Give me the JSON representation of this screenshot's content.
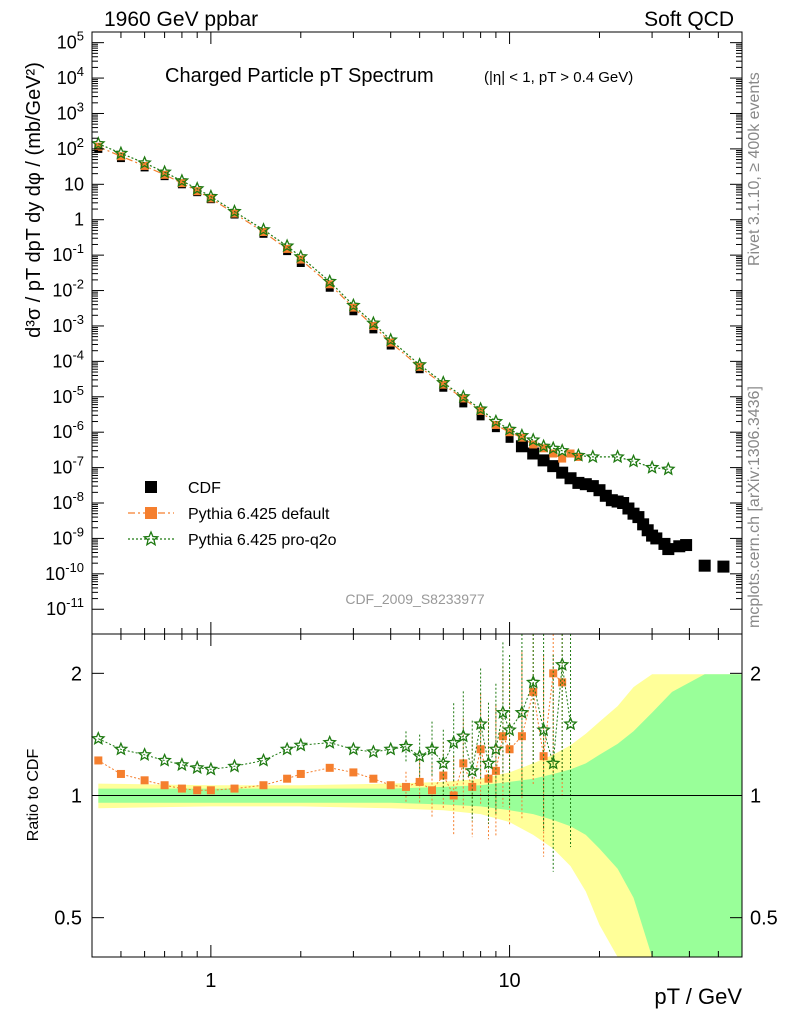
{
  "header": {
    "left": "1960 GeV ppbar",
    "right": "Soft QCD"
  },
  "side_labels": {
    "rivet": "Rivet 3.1.10, ≥ 400k events",
    "mcplots": "mcplots.cern.ch [arXiv:1306.3436]"
  },
  "chart_data": [
    {
      "type": "scatter",
      "panel": "main",
      "title": "Charged Particle pT Spectrum",
      "subtitle": "(|η| < 1, pT > 0.4 GeV)",
      "xlabel": "pT / GeV",
      "ylabel": "d³σ / pT dpT dy dφ / (mb/GeV²)",
      "x_scale": "log",
      "y_scale": "log",
      "xlim": [
        0.4,
        60
      ],
      "ylim": [
        2e-12,
        200000.0
      ],
      "analysis_id": "CDF_2009_S8233977",
      "legend_position": "bottom-left",
      "series": [
        {
          "name": "CDF",
          "color": "#000000",
          "marker": "square",
          "points": [
            [
              0.42,
              100
            ],
            [
              0.5,
              55
            ],
            [
              0.6,
              30
            ],
            [
              0.7,
              17
            ],
            [
              0.8,
              10
            ],
            [
              0.9,
              6
            ],
            [
              1.0,
              3.8
            ],
            [
              1.2,
              1.4
            ],
            [
              1.5,
              0.4
            ],
            [
              1.8,
              0.13
            ],
            [
              2.0,
              0.06
            ],
            [
              2.5,
              0.012
            ],
            [
              3.0,
              0.0026
            ],
            [
              3.5,
              0.0008
            ],
            [
              4.0,
              0.00028
            ],
            [
              5.0,
              6e-05
            ],
            [
              6.0,
              1.8e-05
            ],
            [
              7.0,
              6.5e-06
            ],
            [
              8.0,
              2.8e-06
            ],
            [
              9.0,
              1.3e-06
            ],
            [
              10.0,
              6.5e-07
            ],
            [
              11.0,
              4e-07
            ],
            [
              12.0,
              2.5e-07
            ],
            [
              13.0,
              1.6e-07
            ],
            [
              14.0,
              1.1e-07
            ],
            [
              15.0,
              7.2e-08
            ],
            [
              16.0,
              5e-08
            ],
            [
              17.0,
              3.7e-08
            ],
            [
              18.0,
              3.4e-08
            ],
            [
              19.0,
              3e-08
            ],
            [
              20.0,
              2.3e-08
            ],
            [
              21.0,
              1.6e-08
            ],
            [
              22.0,
              1.2e-08
            ],
            [
              23.0,
              1.1e-08
            ],
            [
              24.0,
              1e-08
            ],
            [
              25.0,
              7e-09
            ],
            [
              26.0,
              5e-09
            ],
            [
              27.0,
              4e-09
            ],
            [
              28.0,
              2.5e-09
            ],
            [
              29.0,
              1.7e-09
            ],
            [
              30.0,
              1.2e-09
            ],
            [
              31.0,
              1e-09
            ],
            [
              33.0,
              7e-10
            ],
            [
              34.0,
              5e-10
            ],
            [
              37.0,
              6e-10
            ],
            [
              39.0,
              6.5e-10
            ],
            [
              45.0,
              1.7e-10
            ],
            [
              52.0,
              1.6e-10
            ]
          ]
        },
        {
          "name": "Pythia 6.425 default",
          "color": "#f57f2e",
          "marker": "square",
          "points": [
            [
              0.42,
              115
            ],
            [
              0.5,
              62
            ],
            [
              0.6,
              33
            ],
            [
              0.7,
              18.5
            ],
            [
              0.8,
              10.8
            ],
            [
              0.9,
              6.4
            ],
            [
              1.0,
              4.0
            ],
            [
              1.2,
              1.5
            ],
            [
              1.5,
              0.45
            ],
            [
              1.8,
              0.15
            ],
            [
              2.0,
              0.075
            ],
            [
              2.5,
              0.015
            ],
            [
              3.0,
              0.0033
            ],
            [
              3.5,
              0.001
            ],
            [
              4.0,
              0.00034
            ],
            [
              5.0,
              7e-05
            ],
            [
              6.0,
              2.2e-05
            ],
            [
              7.0,
              9e-06
            ],
            [
              8.0,
              4e-06
            ],
            [
              9.0,
              1.6e-06
            ],
            [
              10.0,
              1e-06
            ],
            [
              11.0,
              7e-07
            ],
            [
              12.0,
              4.5e-07
            ],
            [
              13.0,
              3.5e-07
            ],
            [
              14.0,
              2.5e-07
            ],
            [
              15.0,
              1.8e-07
            ],
            [
              16.0,
              2.5e-07
            ],
            [
              17.0,
              2e-07
            ]
          ]
        },
        {
          "name": "Pythia 6.425 pro-q2o",
          "color": "#1f7a12",
          "marker": "star",
          "points": [
            [
              0.42,
              140
            ],
            [
              0.5,
              75
            ],
            [
              0.6,
              40
            ],
            [
              0.7,
              22
            ],
            [
              0.8,
              12.5
            ],
            [
              0.9,
              7.5
            ],
            [
              1.0,
              4.5
            ],
            [
              1.2,
              1.7
            ],
            [
              1.5,
              0.52
            ],
            [
              1.8,
              0.18
            ],
            [
              2.0,
              0.09
            ],
            [
              2.5,
              0.018
            ],
            [
              3.0,
              0.0038
            ],
            [
              3.5,
              0.0012
            ],
            [
              4.0,
              0.0004
            ],
            [
              5.0,
              8e-05
            ],
            [
              6.0,
              2.5e-05
            ],
            [
              7.0,
              1e-05
            ],
            [
              8.0,
              4.5e-06
            ],
            [
              9.0,
              2e-06
            ],
            [
              10.0,
              1.2e-06
            ],
            [
              11.0,
              8e-07
            ],
            [
              12.0,
              6e-07
            ],
            [
              13.0,
              4e-07
            ],
            [
              14.0,
              3.5e-07
            ],
            [
              15.0,
              3e-07
            ],
            [
              17.0,
              2.2e-07
            ],
            [
              19.0,
              2e-07
            ],
            [
              23.0,
              2e-07
            ],
            [
              26.0,
              1.5e-07
            ],
            [
              30.0,
              1e-07
            ],
            [
              34.0,
              9e-08
            ]
          ]
        }
      ]
    },
    {
      "type": "scatter",
      "panel": "ratio",
      "ylabel": "Ratio to CDF",
      "xlabel": "pT / GeV",
      "x_scale": "log",
      "y_scale": "log",
      "xlim": [
        0.4,
        60
      ],
      "ylim": [
        0.4,
        2.5
      ],
      "x_ticks": [
        1,
        10
      ],
      "y_ticks": [
        0.5,
        1,
        2
      ],
      "reference_line": 1,
      "band_colors": {
        "inner": "#99ff99",
        "outer": "#ffff99"
      },
      "bands": [
        [
          0.42,
          0.04,
          0.07
        ],
        [
          1.0,
          0.04,
          0.06
        ],
        [
          2.0,
          0.04,
          0.06
        ],
        [
          4.0,
          0.04,
          0.07
        ],
        [
          6.0,
          0.05,
          0.08
        ],
        [
          8.0,
          0.06,
          0.1
        ],
        [
          10.0,
          0.08,
          0.14
        ],
        [
          12.0,
          0.1,
          0.2
        ],
        [
          14.0,
          0.13,
          0.26
        ],
        [
          16.0,
          0.16,
          0.33
        ],
        [
          18.0,
          0.2,
          0.42
        ],
        [
          20.0,
          0.26,
          0.52
        ],
        [
          23.0,
          0.34,
          0.66
        ],
        [
          26.0,
          0.44,
          0.85
        ],
        [
          30.0,
          0.6,
          0.99
        ],
        [
          35.0,
          0.8,
          0.99
        ],
        [
          45.0,
          0.99,
          0.99
        ],
        [
          55.0,
          0.99,
          0.99
        ]
      ],
      "series": [
        {
          "name": "Pythia 6.425 default",
          "color": "#f57f2e",
          "marker": "square",
          "points": [
            [
              0.42,
              1.22
            ],
            [
              0.5,
              1.13
            ],
            [
              0.6,
              1.09
            ],
            [
              0.7,
              1.06
            ],
            [
              0.8,
              1.04
            ],
            [
              0.9,
              1.03
            ],
            [
              1.0,
              1.03
            ],
            [
              1.2,
              1.04
            ],
            [
              1.5,
              1.06
            ],
            [
              1.8,
              1.1
            ],
            [
              2.0,
              1.13
            ],
            [
              2.5,
              1.17
            ],
            [
              3.0,
              1.14
            ],
            [
              3.5,
              1.1
            ],
            [
              4.0,
              1.06
            ],
            [
              4.5,
              1.05
            ],
            [
              5.0,
              1.08
            ],
            [
              5.5,
              1.03
            ],
            [
              6.0,
              1.12
            ],
            [
              6.5,
              1.0
            ],
            [
              7.0,
              1.2
            ],
            [
              7.5,
              1.05
            ],
            [
              8.0,
              1.3
            ],
            [
              8.5,
              1.1
            ],
            [
              9.0,
              1.15
            ],
            [
              9.5,
              1.4
            ],
            [
              10.0,
              1.3
            ],
            [
              11.0,
              1.4
            ],
            [
              12.0,
              1.8
            ],
            [
              13.0,
              1.25
            ],
            [
              14.0,
              2.0
            ],
            [
              15.0,
              1.9
            ]
          ]
        },
        {
          "name": "Pythia 6.425 pro-q2o",
          "color": "#1f7a12",
          "marker": "star",
          "points": [
            [
              0.42,
              1.38
            ],
            [
              0.5,
              1.3
            ],
            [
              0.6,
              1.26
            ],
            [
              0.7,
              1.22
            ],
            [
              0.8,
              1.19
            ],
            [
              0.9,
              1.17
            ],
            [
              1.0,
              1.16
            ],
            [
              1.2,
              1.18
            ],
            [
              1.5,
              1.22
            ],
            [
              1.8,
              1.3
            ],
            [
              2.0,
              1.33
            ],
            [
              2.5,
              1.35
            ],
            [
              3.0,
              1.3
            ],
            [
              3.5,
              1.28
            ],
            [
              4.0,
              1.3
            ],
            [
              4.5,
              1.32
            ],
            [
              5.0,
              1.25
            ],
            [
              5.5,
              1.3
            ],
            [
              6.0,
              1.2
            ],
            [
              6.5,
              1.35
            ],
            [
              7.0,
              1.4
            ],
            [
              7.5,
              1.15
            ],
            [
              8.0,
              1.5
            ],
            [
              8.5,
              1.2
            ],
            [
              9.0,
              1.3
            ],
            [
              9.5,
              1.6
            ],
            [
              10.0,
              1.45
            ],
            [
              11.0,
              1.6
            ],
            [
              12.0,
              1.9
            ],
            [
              13.0,
              1.45
            ],
            [
              14.0,
              1.2
            ],
            [
              15.0,
              2.1
            ],
            [
              16.0,
              1.5
            ]
          ]
        }
      ]
    }
  ]
}
